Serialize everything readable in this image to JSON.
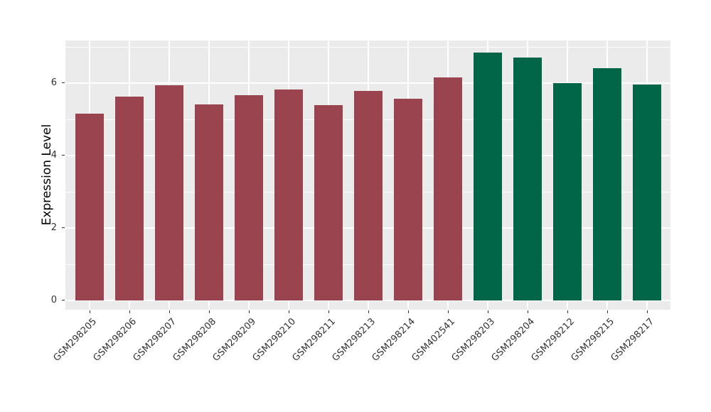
{
  "figure": {
    "background": "#FFFFFF"
  },
  "chart_data": {
    "type": "bar",
    "title": "",
    "xlabel": "",
    "ylabel": "Expression Level",
    "categories": [
      "GSM298205",
      "GSM298206",
      "GSM298207",
      "GSM298208",
      "GSM298209",
      "GSM298210",
      "GSM298211",
      "GSM298213",
      "GSM298214",
      "GSM402541",
      "GSM298203",
      "GSM298204",
      "GSM298212",
      "GSM298215",
      "GSM298217"
    ],
    "values": [
      5.16,
      5.63,
      5.95,
      5.42,
      5.66,
      5.82,
      5.39,
      5.79,
      5.56,
      6.15,
      6.84,
      6.71,
      6.0,
      6.41,
      5.96
    ],
    "bar_colors": [
      "#9A4450",
      "#9A4450",
      "#9A4450",
      "#9A4450",
      "#9A4450",
      "#9A4450",
      "#9A4450",
      "#9A4450",
      "#9A4450",
      "#9A4450",
      "#006647",
      "#006647",
      "#006647",
      "#006647",
      "#006647"
    ],
    "palette": {
      "maroon": "#9A4450",
      "green": "#006647"
    },
    "yticks": [
      0,
      2,
      4,
      6
    ],
    "yticks_minor": [
      1,
      3,
      5,
      7
    ],
    "ylim": [
      0,
      7.18
    ],
    "panel_background": "#EBEBEB",
    "grid_color": "#FFFFFF",
    "tick_text_color": "#333333",
    "grid": "on",
    "legend_position": "none"
  }
}
